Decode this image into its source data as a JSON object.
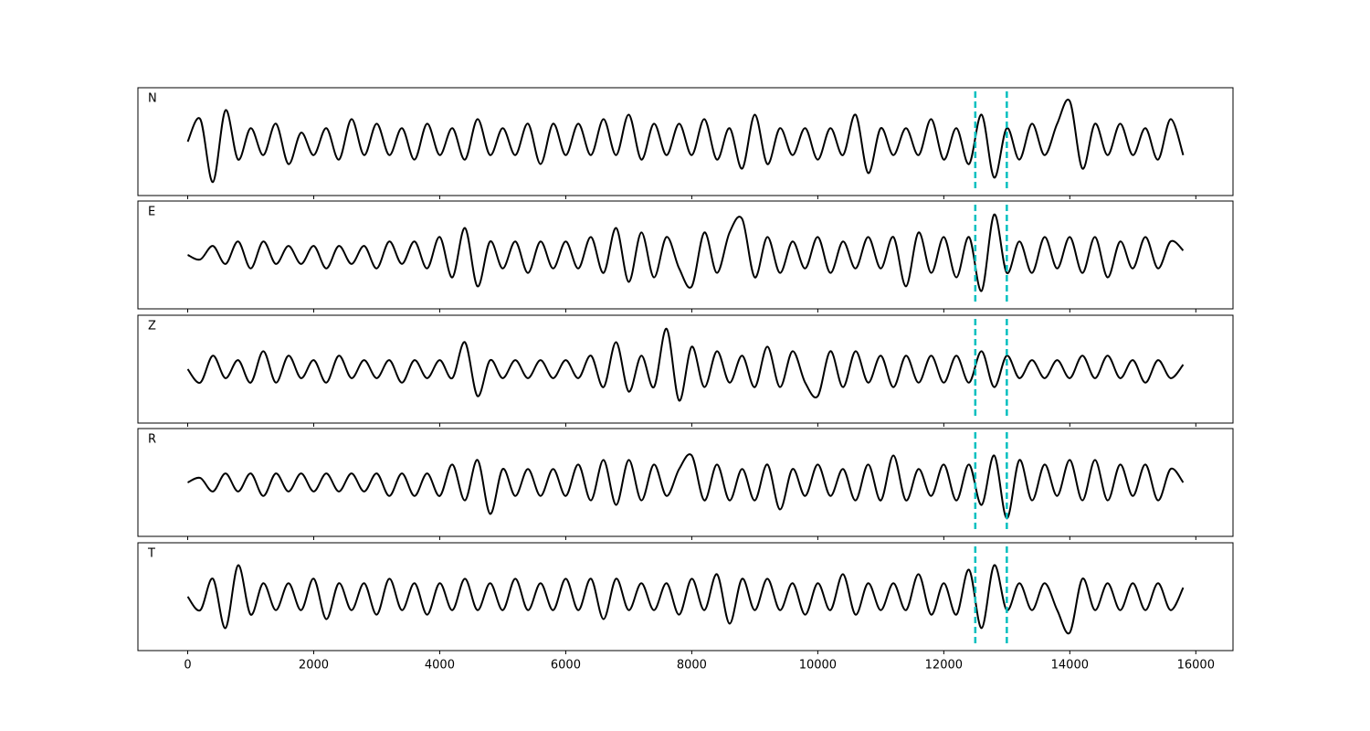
{
  "chart_data": {
    "type": "line",
    "x": [
      0,
      200,
      400,
      600,
      800,
      1000,
      1200,
      1400,
      1600,
      1800,
      2000,
      2200,
      2400,
      2600,
      2800,
      3000,
      3200,
      3400,
      3600,
      3800,
      4000,
      4200,
      4400,
      4600,
      4800,
      5000,
      5200,
      5400,
      5600,
      5800,
      6000,
      6200,
      6400,
      6600,
      6800,
      7000,
      7200,
      7400,
      7600,
      7800,
      8000,
      8200,
      8400,
      8600,
      8800,
      9000,
      9200,
      9400,
      9600,
      9800,
      10000,
      10200,
      10400,
      10600,
      10800,
      11000,
      11200,
      11400,
      11600,
      11800,
      12000,
      12200,
      12400,
      12600,
      12800,
      13000,
      13200,
      13400,
      13600,
      13800,
      14000,
      14200,
      14400,
      14600,
      14800,
      15000,
      15200,
      15400,
      15600,
      15800
    ],
    "series": [
      {
        "name": "N",
        "color": "#000000",
        "values": [
          0.0,
          0.5,
          -0.9,
          0.7,
          -0.4,
          0.3,
          -0.3,
          0.4,
          -0.5,
          0.2,
          -0.3,
          0.3,
          -0.4,
          0.5,
          -0.3,
          0.4,
          -0.3,
          0.3,
          -0.4,
          0.4,
          -0.3,
          0.3,
          -0.4,
          0.5,
          -0.3,
          0.3,
          -0.3,
          0.4,
          -0.5,
          0.4,
          -0.3,
          0.4,
          -0.3,
          0.5,
          -0.3,
          0.6,
          -0.4,
          0.4,
          -0.3,
          0.4,
          -0.3,
          0.5,
          -0.4,
          0.3,
          -0.6,
          0.6,
          -0.5,
          0.3,
          -0.3,
          0.3,
          -0.4,
          0.3,
          -0.3,
          0.6,
          -0.7,
          0.3,
          -0.3,
          0.3,
          -0.3,
          0.5,
          -0.4,
          0.3,
          -0.5,
          0.6,
          -0.8,
          0.3,
          -0.4,
          0.4,
          -0.3,
          0.4,
          0.9,
          -0.6,
          0.4,
          -0.3,
          0.4,
          -0.3,
          0.3,
          -0.4,
          0.5,
          -0.3
        ]
      },
      {
        "name": "E",
        "color": "#000000",
        "values": [
          0.0,
          -0.1,
          0.2,
          -0.2,
          0.3,
          -0.3,
          0.3,
          -0.2,
          0.2,
          -0.2,
          0.2,
          -0.3,
          0.2,
          -0.2,
          0.2,
          -0.3,
          0.3,
          -0.2,
          0.3,
          -0.3,
          0.4,
          -0.5,
          0.6,
          -0.7,
          0.3,
          -0.3,
          0.3,
          -0.4,
          0.3,
          -0.3,
          0.3,
          -0.3,
          0.4,
          -0.4,
          0.6,
          -0.6,
          0.5,
          -0.5,
          0.4,
          -0.3,
          -0.7,
          0.5,
          -0.4,
          0.5,
          0.8,
          -0.5,
          0.4,
          -0.4,
          0.3,
          -0.3,
          0.4,
          -0.4,
          0.3,
          -0.3,
          0.4,
          -0.3,
          0.4,
          -0.7,
          0.5,
          -0.4,
          0.4,
          -0.5,
          0.4,
          -0.8,
          0.9,
          -0.4,
          0.3,
          -0.4,
          0.4,
          -0.3,
          0.4,
          -0.4,
          0.4,
          -0.5,
          0.3,
          -0.3,
          0.4,
          -0.3,
          0.3,
          0.1
        ]
      },
      {
        "name": "Z",
        "color": "#000000",
        "values": [
          0.0,
          -0.3,
          0.3,
          -0.2,
          0.2,
          -0.3,
          0.4,
          -0.3,
          0.3,
          -0.2,
          0.2,
          -0.3,
          0.3,
          -0.2,
          0.2,
          -0.2,
          0.2,
          -0.3,
          0.2,
          -0.2,
          0.2,
          -0.2,
          0.6,
          -0.6,
          0.2,
          -0.2,
          0.2,
          -0.2,
          0.2,
          -0.2,
          0.2,
          -0.2,
          0.3,
          -0.4,
          0.6,
          -0.5,
          0.3,
          -0.4,
          0.9,
          -0.7,
          0.5,
          -0.4,
          0.4,
          -0.3,
          0.3,
          -0.4,
          0.5,
          -0.4,
          0.4,
          -0.3,
          -0.6,
          0.4,
          -0.4,
          0.4,
          -0.3,
          0.3,
          -0.4,
          0.3,
          -0.3,
          0.3,
          -0.3,
          0.3,
          -0.3,
          0.4,
          -0.4,
          0.3,
          -0.2,
          0.2,
          -0.2,
          0.2,
          -0.2,
          0.3,
          -0.2,
          0.3,
          -0.2,
          0.2,
          -0.3,
          0.2,
          -0.2,
          0.1
        ]
      },
      {
        "name": "R",
        "color": "#000000",
        "values": [
          0.0,
          0.1,
          -0.2,
          0.2,
          -0.2,
          0.2,
          -0.3,
          0.2,
          -0.2,
          0.2,
          -0.2,
          0.2,
          -0.2,
          0.2,
          -0.2,
          0.2,
          -0.3,
          0.2,
          -0.3,
          0.2,
          -0.3,
          0.4,
          -0.4,
          0.5,
          -0.7,
          0.3,
          -0.3,
          0.3,
          -0.3,
          0.3,
          -0.3,
          0.4,
          -0.4,
          0.5,
          -0.5,
          0.5,
          -0.4,
          0.4,
          -0.3,
          0.3,
          0.6,
          -0.4,
          0.4,
          -0.4,
          0.3,
          -0.4,
          0.4,
          -0.6,
          0.3,
          -0.3,
          0.4,
          -0.3,
          0.3,
          -0.4,
          0.4,
          -0.4,
          0.6,
          -0.4,
          0.3,
          -0.3,
          0.4,
          -0.4,
          0.4,
          -0.5,
          0.6,
          -0.8,
          0.5,
          -0.4,
          0.4,
          -0.3,
          0.5,
          -0.4,
          0.5,
          -0.4,
          0.4,
          -0.3,
          0.4,
          -0.4,
          0.3,
          0.0
        ]
      },
      {
        "name": "T",
        "color": "#000000",
        "values": [
          0.0,
          -0.3,
          0.4,
          -0.7,
          0.7,
          -0.4,
          0.3,
          -0.3,
          0.3,
          -0.3,
          0.4,
          -0.5,
          0.3,
          -0.3,
          0.3,
          -0.4,
          0.4,
          -0.3,
          0.3,
          -0.4,
          0.3,
          -0.3,
          0.4,
          -0.3,
          0.3,
          -0.3,
          0.4,
          -0.3,
          0.3,
          -0.3,
          0.4,
          -0.3,
          0.4,
          -0.5,
          0.4,
          -0.3,
          0.3,
          -0.3,
          0.3,
          -0.4,
          0.4,
          -0.3,
          0.5,
          -0.6,
          0.4,
          -0.3,
          0.4,
          -0.3,
          0.3,
          -0.4,
          0.3,
          -0.3,
          0.5,
          -0.4,
          0.3,
          -0.3,
          0.3,
          -0.3,
          0.5,
          -0.4,
          0.3,
          -0.4,
          0.6,
          -0.7,
          0.7,
          -0.3,
          0.3,
          -0.3,
          0.3,
          -0.3,
          -0.8,
          0.4,
          -0.3,
          0.3,
          -0.3,
          0.3,
          -0.3,
          0.3,
          -0.3,
          0.2
        ]
      }
    ],
    "xlim": [
      -790,
      16590
    ],
    "xticks": [
      0,
      2000,
      4000,
      6000,
      8000,
      10000,
      12000,
      14000,
      16000
    ],
    "ylim": [
      -1.2,
      1.2
    ],
    "vlines": [
      12500,
      13000
    ],
    "vline_color": "#00bfbf"
  }
}
